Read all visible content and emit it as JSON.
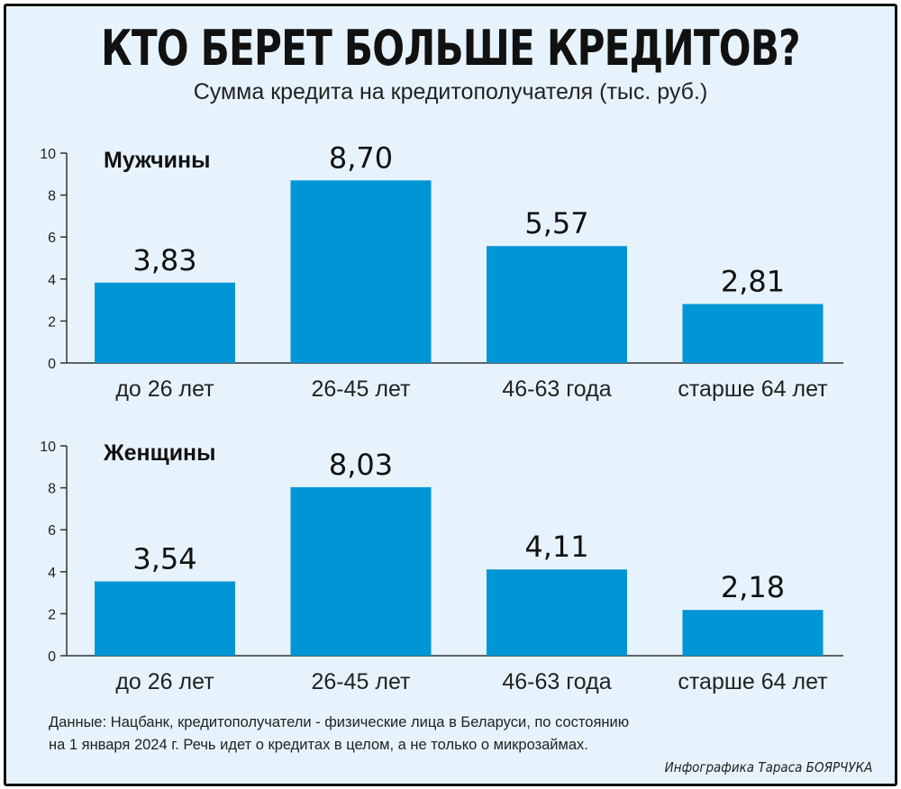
{
  "title": "КТО БЕРЕТ БОЛЬШЕ КРЕДИТОВ?",
  "subtitle": "Сумма кредита на кредитополучателя (тыс. руб.)",
  "footnote": {
    "line1": "Данные: Нацбанк, кредитополучатели - физические лица в Беларуси, по состоянию",
    "line2": "на 1 января 2024 г. Речь идет о кредитах в целом, а не только о микрозаймах."
  },
  "credit": "Инфографика Тараса БОЯРЧУКА",
  "colors": {
    "bar": "#0096d6",
    "background": "#e6f3fc",
    "axis": "#333333"
  },
  "chart_data": [
    {
      "type": "bar",
      "title": "Мужчины",
      "categories": [
        "до 26 лет",
        "26-45 лет",
        "46-63 года",
        "старше 64 лет"
      ],
      "values": [
        3.83,
        8.7,
        5.57,
        2.81
      ],
      "value_labels": [
        "3,83",
        "8,70",
        "5,57",
        "2,81"
      ],
      "yticks": [
        "0",
        "2",
        "4",
        "6",
        "8",
        "10"
      ],
      "ylim": [
        0,
        10
      ],
      "xlabel": "",
      "ylabel": ""
    },
    {
      "type": "bar",
      "title": "Женщины",
      "categories": [
        "до 26 лет",
        "26-45 лет",
        "46-63 года",
        "старше 64 лет"
      ],
      "values": [
        3.54,
        8.03,
        4.11,
        2.18
      ],
      "value_labels": [
        "3,54",
        "8,03",
        "4,11",
        "2,18"
      ],
      "yticks": [
        "0",
        "2",
        "4",
        "6",
        "8",
        "10"
      ],
      "ylim": [
        0,
        10
      ],
      "xlabel": "",
      "ylabel": ""
    }
  ]
}
